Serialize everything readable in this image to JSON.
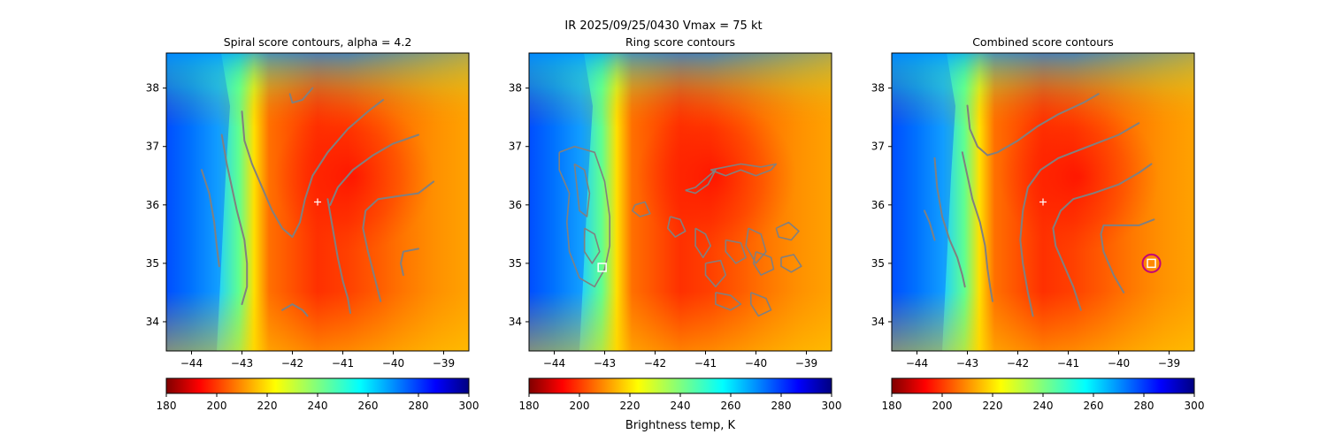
{
  "suptitle": "IR  2025/09/25/0430    Vmax = 75 kt",
  "colorbar_label": "Brightness temp, K",
  "chart_data": [
    {
      "type": "heatmap",
      "title": "Spiral score contours, alpha =  4.2",
      "xlim": [
        -44.5,
        -38.5
      ],
      "ylim": [
        33.5,
        38.6
      ],
      "xticks": [
        -44,
        -43,
        -42,
        -41,
        -40,
        -39
      ],
      "xtick_labels": [
        "−44",
        "−43",
        "−42",
        "−41",
        "−40",
        "−39"
      ],
      "yticks": [
        34,
        35,
        36,
        37,
        38
      ],
      "ytick_labels": [
        "34",
        "35",
        "36",
        "37",
        "38"
      ],
      "center_marker": {
        "x": -41.5,
        "y": 36.05
      },
      "contour_color": "#808080",
      "contours": [
        [
          [
            -43.8,
            36.6
          ],
          [
            -43.65,
            36.2
          ],
          [
            -43.55,
            35.7
          ],
          [
            -43.5,
            35.3
          ],
          [
            -43.45,
            34.95
          ]
        ],
        [
          [
            -43.4,
            37.2
          ],
          [
            -43.3,
            36.7
          ],
          [
            -43.2,
            36.3
          ],
          [
            -43.1,
            35.9
          ],
          [
            -42.95,
            35.4
          ],
          [
            -42.9,
            35.0
          ],
          [
            -42.9,
            34.6
          ],
          [
            -43.0,
            34.3
          ]
        ],
        [
          [
            -43.0,
            37.6
          ],
          [
            -42.95,
            37.1
          ],
          [
            -42.8,
            36.7
          ],
          [
            -42.6,
            36.3
          ],
          [
            -42.4,
            35.9
          ],
          [
            -42.2,
            35.6
          ],
          [
            -42.0,
            35.45
          ],
          [
            -41.85,
            35.7
          ],
          [
            -41.75,
            36.1
          ],
          [
            -41.6,
            36.5
          ],
          [
            -41.3,
            36.9
          ],
          [
            -40.9,
            37.3
          ],
          [
            -40.5,
            37.6
          ],
          [
            -40.2,
            37.8
          ]
        ],
        [
          [
            -41.3,
            36.1
          ],
          [
            -41.2,
            35.6
          ],
          [
            -41.1,
            35.1
          ],
          [
            -41.0,
            34.7
          ],
          [
            -40.9,
            34.4
          ],
          [
            -40.85,
            34.15
          ]
        ],
        [
          [
            -41.25,
            36.0
          ],
          [
            -41.1,
            36.3
          ],
          [
            -40.8,
            36.6
          ],
          [
            -40.4,
            36.85
          ],
          [
            -40.0,
            37.05
          ],
          [
            -39.5,
            37.2
          ]
        ],
        [
          [
            -40.25,
            34.35
          ],
          [
            -40.35,
            34.7
          ],
          [
            -40.5,
            35.2
          ],
          [
            -40.6,
            35.6
          ],
          [
            -40.55,
            35.9
          ],
          [
            -40.3,
            36.1
          ],
          [
            -39.9,
            36.15
          ],
          [
            -39.5,
            36.2
          ],
          [
            -39.2,
            36.4
          ]
        ],
        [
          [
            -42.2,
            34.2
          ],
          [
            -42.0,
            34.3
          ],
          [
            -41.8,
            34.2
          ],
          [
            -41.7,
            34.1
          ]
        ],
        [
          [
            -42.05,
            37.9
          ],
          [
            -42.0,
            37.75
          ],
          [
            -41.8,
            37.8
          ],
          [
            -41.6,
            38.0
          ]
        ],
        [
          [
            -39.8,
            34.8
          ],
          [
            -39.85,
            35.0
          ],
          [
            -39.8,
            35.2
          ],
          [
            -39.5,
            35.25
          ]
        ]
      ],
      "ring_contours": [],
      "markers": [],
      "colorbar": {
        "cmap": "jet_r",
        "min": 180,
        "max": 300,
        "ticks": [
          "180",
          "200",
          "220",
          "240",
          "260",
          "280",
          "300"
        ]
      }
    },
    {
      "type": "heatmap",
      "title": "Ring score contours",
      "xlim": [
        -44.5,
        -38.5
      ],
      "ylim": [
        33.5,
        38.6
      ],
      "xticks": [
        -44,
        -43,
        -42,
        -41,
        -40,
        -39
      ],
      "xtick_labels": [
        "−44",
        "−43",
        "−42",
        "−41",
        "−40",
        "−39"
      ],
      "yticks": [
        34,
        35,
        36,
        37,
        38
      ],
      "ytick_labels": [
        "34",
        "35",
        "36",
        "37",
        "38"
      ],
      "contour_color": "#808080",
      "contours": [],
      "ring_contours": [
        [
          [
            -43.9,
            36.9
          ],
          [
            -43.6,
            37.0
          ],
          [
            -43.2,
            36.9
          ],
          [
            -43.0,
            36.4
          ],
          [
            -42.9,
            35.8
          ],
          [
            -42.9,
            35.3
          ],
          [
            -43.0,
            34.9
          ],
          [
            -43.2,
            34.6
          ],
          [
            -43.5,
            34.75
          ],
          [
            -43.7,
            35.2
          ],
          [
            -43.75,
            35.7
          ],
          [
            -43.7,
            36.2
          ],
          [
            -43.9,
            36.6
          ],
          [
            -43.9,
            36.9
          ]
        ],
        [
          [
            -43.6,
            36.7
          ],
          [
            -43.4,
            36.6
          ],
          [
            -43.3,
            36.2
          ],
          [
            -43.35,
            35.8
          ],
          [
            -43.5,
            35.9
          ],
          [
            -43.55,
            36.3
          ],
          [
            -43.6,
            36.7
          ]
        ],
        [
          [
            -43.4,
            35.6
          ],
          [
            -43.2,
            35.5
          ],
          [
            -43.1,
            35.2
          ],
          [
            -43.25,
            35.0
          ],
          [
            -43.4,
            35.2
          ],
          [
            -43.4,
            35.6
          ]
        ],
        [
          [
            -41.4,
            36.25
          ],
          [
            -41.2,
            36.3
          ],
          [
            -41.0,
            36.45
          ],
          [
            -40.8,
            36.6
          ],
          [
            -40.95,
            36.35
          ],
          [
            -41.2,
            36.2
          ],
          [
            -41.4,
            36.25
          ]
        ],
        [
          [
            -40.9,
            36.6
          ],
          [
            -40.6,
            36.5
          ],
          [
            -40.3,
            36.6
          ],
          [
            -40.0,
            36.5
          ],
          [
            -39.7,
            36.6
          ],
          [
            -39.6,
            36.7
          ],
          [
            -39.9,
            36.65
          ],
          [
            -40.3,
            36.7
          ],
          [
            -40.9,
            36.6
          ]
        ],
        [
          [
            -41.2,
            35.6
          ],
          [
            -41.0,
            35.5
          ],
          [
            -40.9,
            35.3
          ],
          [
            -41.05,
            35.1
          ],
          [
            -41.2,
            35.3
          ],
          [
            -41.2,
            35.6
          ]
        ],
        [
          [
            -41.0,
            35.0
          ],
          [
            -40.7,
            35.05
          ],
          [
            -40.6,
            34.8
          ],
          [
            -40.8,
            34.6
          ],
          [
            -41.0,
            34.8
          ],
          [
            -41.0,
            35.0
          ]
        ],
        [
          [
            -40.8,
            34.5
          ],
          [
            -40.5,
            34.45
          ],
          [
            -40.3,
            34.3
          ],
          [
            -40.5,
            34.2
          ],
          [
            -40.8,
            34.3
          ],
          [
            -40.8,
            34.5
          ]
        ],
        [
          [
            -40.6,
            35.4
          ],
          [
            -40.3,
            35.35
          ],
          [
            -40.2,
            35.1
          ],
          [
            -40.4,
            35.0
          ],
          [
            -40.6,
            35.2
          ],
          [
            -40.6,
            35.4
          ]
        ],
        [
          [
            -40.15,
            35.6
          ],
          [
            -39.9,
            35.5
          ],
          [
            -39.8,
            35.2
          ],
          [
            -40.0,
            35.0
          ],
          [
            -40.2,
            35.3
          ],
          [
            -40.15,
            35.6
          ]
        ],
        [
          [
            -40.0,
            35.2
          ],
          [
            -39.7,
            35.1
          ],
          [
            -39.65,
            34.9
          ],
          [
            -39.9,
            34.8
          ],
          [
            -40.05,
            35.0
          ],
          [
            -40.0,
            35.2
          ]
        ],
        [
          [
            -40.1,
            34.5
          ],
          [
            -39.8,
            34.4
          ],
          [
            -39.7,
            34.2
          ],
          [
            -39.95,
            34.1
          ],
          [
            -40.1,
            34.3
          ],
          [
            -40.1,
            34.5
          ]
        ],
        [
          [
            -39.6,
            35.6
          ],
          [
            -39.35,
            35.7
          ],
          [
            -39.15,
            35.55
          ],
          [
            -39.3,
            35.4
          ],
          [
            -39.55,
            35.45
          ],
          [
            -39.6,
            35.6
          ]
        ],
        [
          [
            -39.5,
            35.1
          ],
          [
            -39.25,
            35.15
          ],
          [
            -39.1,
            34.95
          ],
          [
            -39.3,
            34.85
          ],
          [
            -39.5,
            34.95
          ],
          [
            -39.5,
            35.1
          ]
        ],
        [
          [
            -41.7,
            35.8
          ],
          [
            -41.5,
            35.75
          ],
          [
            -41.4,
            35.55
          ],
          [
            -41.6,
            35.45
          ],
          [
            -41.75,
            35.6
          ],
          [
            -41.7,
            35.8
          ]
        ],
        [
          [
            -42.4,
            36.0
          ],
          [
            -42.2,
            36.05
          ],
          [
            -42.1,
            35.85
          ],
          [
            -42.3,
            35.8
          ],
          [
            -42.45,
            35.9
          ],
          [
            -42.4,
            36.0
          ]
        ]
      ],
      "markers": [
        {
          "type": "square",
          "x": -43.05,
          "y": 34.93,
          "color": "#ffffff"
        }
      ],
      "colorbar": {
        "cmap": "jet_r",
        "min": 180,
        "max": 300,
        "ticks": [
          "180",
          "200",
          "220",
          "240",
          "260",
          "280",
          "300"
        ]
      }
    },
    {
      "type": "heatmap",
      "title": "Combined score contours",
      "xlim": [
        -44.5,
        -38.5
      ],
      "ylim": [
        33.5,
        38.6
      ],
      "xticks": [
        -44,
        -43,
        -42,
        -41,
        -40,
        -39
      ],
      "xtick_labels": [
        "−44",
        "−43",
        "−42",
        "−41",
        "−40",
        "−39"
      ],
      "yticks": [
        34,
        35,
        36,
        37,
        38
      ],
      "ytick_labels": [
        "34",
        "35",
        "36",
        "37",
        "38"
      ],
      "center_marker": {
        "x": -41.5,
        "y": 36.05
      },
      "contour_color": "#808080",
      "contours": [
        [
          [
            -43.85,
            35.9
          ],
          [
            -43.75,
            35.7
          ],
          [
            -43.65,
            35.4
          ]
        ],
        [
          [
            -43.65,
            36.8
          ],
          [
            -43.6,
            36.3
          ],
          [
            -43.5,
            35.8
          ],
          [
            -43.35,
            35.4
          ],
          [
            -43.2,
            35.1
          ],
          [
            -43.1,
            34.8
          ],
          [
            -43.05,
            34.6
          ]
        ],
        [
          [
            -43.1,
            36.9
          ],
          [
            -43.0,
            36.5
          ],
          [
            -42.9,
            36.1
          ],
          [
            -42.75,
            35.7
          ],
          [
            -42.65,
            35.3
          ],
          [
            -42.6,
            34.9
          ],
          [
            -42.55,
            34.6
          ],
          [
            -42.5,
            34.35
          ]
        ],
        [
          [
            -43.0,
            37.7
          ],
          [
            -42.95,
            37.3
          ],
          [
            -42.8,
            37.0
          ],
          [
            -42.6,
            36.85
          ],
          [
            -42.4,
            36.9
          ],
          [
            -42.0,
            37.1
          ],
          [
            -41.6,
            37.35
          ],
          [
            -41.2,
            37.55
          ],
          [
            -40.7,
            37.75
          ],
          [
            -40.4,
            37.9
          ]
        ],
        [
          [
            -41.7,
            34.1
          ],
          [
            -41.8,
            34.5
          ],
          [
            -41.9,
            35.0
          ],
          [
            -41.95,
            35.4
          ],
          [
            -41.9,
            35.9
          ],
          [
            -41.8,
            36.3
          ],
          [
            -41.55,
            36.6
          ],
          [
            -41.2,
            36.8
          ],
          [
            -40.6,
            37.0
          ],
          [
            -40.0,
            37.2
          ],
          [
            -39.6,
            37.4
          ]
        ],
        [
          [
            -40.75,
            34.2
          ],
          [
            -40.9,
            34.6
          ],
          [
            -41.1,
            35.0
          ],
          [
            -41.25,
            35.3
          ],
          [
            -41.3,
            35.6
          ],
          [
            -41.15,
            35.9
          ],
          [
            -40.9,
            36.1
          ],
          [
            -40.5,
            36.2
          ],
          [
            -40.0,
            36.35
          ],
          [
            -39.6,
            36.55
          ],
          [
            -39.35,
            36.7
          ]
        ],
        [
          [
            -39.9,
            34.5
          ],
          [
            -40.1,
            34.8
          ],
          [
            -40.3,
            35.2
          ],
          [
            -40.35,
            35.5
          ],
          [
            -40.3,
            35.65
          ],
          [
            -40.0,
            35.65
          ],
          [
            -39.6,
            35.65
          ],
          [
            -39.3,
            35.75
          ]
        ]
      ],
      "ring_contours": [],
      "markers": [
        {
          "type": "circle",
          "x": -39.35,
          "y": 35.0,
          "color": "#c0007a"
        },
        {
          "type": "square",
          "x": -39.35,
          "y": 35.0,
          "color": "#ffffff"
        }
      ],
      "colorbar": {
        "cmap": "jet_r",
        "min": 180,
        "max": 300,
        "ticks": [
          "180",
          "200",
          "220",
          "240",
          "260",
          "280",
          "300"
        ]
      }
    }
  ]
}
